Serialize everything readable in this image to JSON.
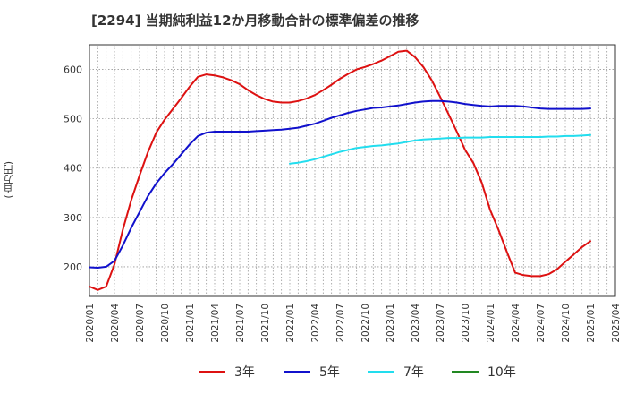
{
  "chart_data": {
    "type": "line",
    "title": "[2294]  当期純利益12か月移動合計の標準偏差の推移",
    "ylabel": "(百万円)",
    "xlabel": "",
    "ylim": [
      140,
      650
    ],
    "yticks": [
      200,
      300,
      400,
      500,
      600
    ],
    "xlim": [
      "2020-01",
      "2025-04"
    ],
    "xticks": [
      "2020/01",
      "2020/04",
      "2020/07",
      "2020/10",
      "2021/01",
      "2021/04",
      "2021/07",
      "2021/10",
      "2022/01",
      "2022/04",
      "2022/07",
      "2022/10",
      "2023/01",
      "2023/04",
      "2023/07",
      "2023/10",
      "2024/01",
      "2024/04",
      "2024/07",
      "2024/10",
      "2025/01",
      "2025/04"
    ],
    "grid": true,
    "legend_position": "bottom",
    "series": [
      {
        "name": "3年",
        "color": "#dd1111",
        "x": [
          "2020-01",
          "2020-02",
          "2020-03",
          "2020-04",
          "2020-05",
          "2020-06",
          "2020-07",
          "2020-08",
          "2020-09",
          "2020-10",
          "2020-11",
          "2020-12",
          "2021-01",
          "2021-02",
          "2021-03",
          "2021-04",
          "2021-05",
          "2021-06",
          "2021-07",
          "2021-08",
          "2021-09",
          "2021-10",
          "2021-11",
          "2021-12",
          "2022-01",
          "2022-02",
          "2022-03",
          "2022-04",
          "2022-05",
          "2022-06",
          "2022-07",
          "2022-08",
          "2022-09",
          "2022-10",
          "2022-11",
          "2022-12",
          "2023-01",
          "2023-02",
          "2023-03",
          "2023-04",
          "2023-05",
          "2023-06",
          "2023-07",
          "2023-08",
          "2023-09",
          "2023-10",
          "2023-11",
          "2023-12",
          "2024-01",
          "2024-02",
          "2024-03",
          "2024-04",
          "2024-05",
          "2024-06",
          "2024-07",
          "2024-08",
          "2024-09",
          "2024-10",
          "2024-11",
          "2024-12",
          "2025-01"
        ],
        "values": [
          160,
          153,
          160,
          205,
          275,
          335,
          385,
          432,
          472,
          498,
          520,
          542,
          565,
          585,
          590,
          588,
          584,
          578,
          570,
          558,
          548,
          540,
          535,
          533,
          533,
          536,
          541,
          548,
          558,
          569,
          581,
          591,
          600,
          605,
          611,
          618,
          627,
          636,
          638,
          625,
          605,
          578,
          545,
          510,
          474,
          437,
          410,
          370,
          315,
          275,
          230,
          188,
          183,
          181,
          181,
          185,
          195,
          210,
          225,
          240,
          252
        ]
      },
      {
        "name": "5年",
        "color": "#1111cc",
        "x": [
          "2020-01",
          "2020-02",
          "2020-03",
          "2020-04",
          "2020-05",
          "2020-06",
          "2020-07",
          "2020-08",
          "2020-09",
          "2020-10",
          "2020-11",
          "2020-12",
          "2021-01",
          "2021-02",
          "2021-03",
          "2021-04",
          "2021-05",
          "2021-06",
          "2021-07",
          "2021-08",
          "2021-09",
          "2021-10",
          "2021-11",
          "2021-12",
          "2022-01",
          "2022-02",
          "2022-03",
          "2022-04",
          "2022-05",
          "2022-06",
          "2022-07",
          "2022-08",
          "2022-09",
          "2022-10",
          "2022-11",
          "2022-12",
          "2023-01",
          "2023-02",
          "2023-03",
          "2023-04",
          "2023-05",
          "2023-06",
          "2023-07",
          "2023-08",
          "2023-09",
          "2023-10",
          "2023-11",
          "2023-12",
          "2024-01",
          "2024-02",
          "2024-03",
          "2024-04",
          "2024-05",
          "2024-06",
          "2024-07",
          "2024-08",
          "2024-09",
          "2024-10",
          "2024-11",
          "2024-12",
          "2025-01"
        ],
        "values": [
          199,
          198,
          200,
          212,
          243,
          279,
          311,
          343,
          369,
          390,
          408,
          428,
          448,
          465,
          472,
          474,
          474,
          474,
          474,
          474,
          475,
          476,
          477,
          478,
          480,
          482,
          486,
          490,
          496,
          502,
          507,
          512,
          516,
          519,
          522,
          523,
          525,
          527,
          530,
          533,
          535,
          536,
          536,
          535,
          533,
          530,
          528,
          526,
          525,
          526,
          526,
          526,
          525,
          523,
          521,
          520,
          520,
          520,
          520,
          520,
          521
        ]
      },
      {
        "name": "7年",
        "color": "#22ddee",
        "x": [
          "2022-01",
          "2022-02",
          "2022-03",
          "2022-04",
          "2022-05",
          "2022-06",
          "2022-07",
          "2022-08",
          "2022-09",
          "2022-10",
          "2022-11",
          "2022-12",
          "2023-01",
          "2023-02",
          "2023-03",
          "2023-04",
          "2023-05",
          "2023-06",
          "2023-07",
          "2023-08",
          "2023-09",
          "2023-10",
          "2023-11",
          "2023-12",
          "2024-01",
          "2024-02",
          "2024-03",
          "2024-04",
          "2024-05",
          "2024-06",
          "2024-07",
          "2024-08",
          "2024-09",
          "2024-10",
          "2024-11",
          "2024-12",
          "2025-01"
        ],
        "values": [
          409,
          411,
          414,
          418,
          423,
          428,
          433,
          437,
          441,
          443,
          445,
          446,
          448,
          450,
          453,
          456,
          458,
          459,
          460,
          461,
          461,
          462,
          462,
          462,
          463,
          463,
          463,
          463,
          463,
          463,
          463,
          464,
          464,
          465,
          465,
          466,
          467
        ]
      },
      {
        "name": "10年",
        "color": "#228822",
        "x": [],
        "values": []
      }
    ]
  }
}
